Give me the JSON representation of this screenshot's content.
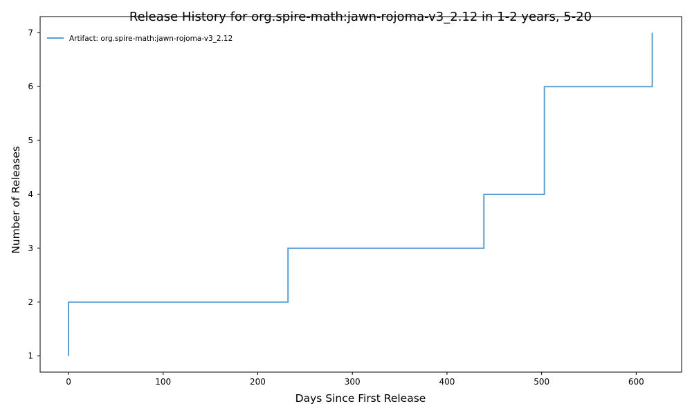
{
  "chart_data": {
    "type": "line",
    "title": "Release History for org.spire-math:jawn-rojoma-v3_2.12 in 1-2 years, 5-20",
    "xlabel": "Days Since First Release",
    "ylabel": "Number of Releases",
    "xlim": [
      -30,
      648
    ],
    "ylim": [
      0.7,
      7.3
    ],
    "x_ticks": [
      0,
      100,
      200,
      300,
      400,
      500,
      600
    ],
    "y_ticks": [
      1,
      2,
      3,
      4,
      5,
      6,
      7
    ],
    "grid": false,
    "legend_position": "top-left",
    "step": "post",
    "series": [
      {
        "name": "Artifact: org.spire-math:jawn-rojoma-v3_2.12",
        "color": "#5a9fd4",
        "x": [
          0,
          0,
          232,
          439,
          503,
          617
        ],
        "y": [
          1,
          2,
          3,
          4,
          6,
          7
        ]
      }
    ]
  }
}
